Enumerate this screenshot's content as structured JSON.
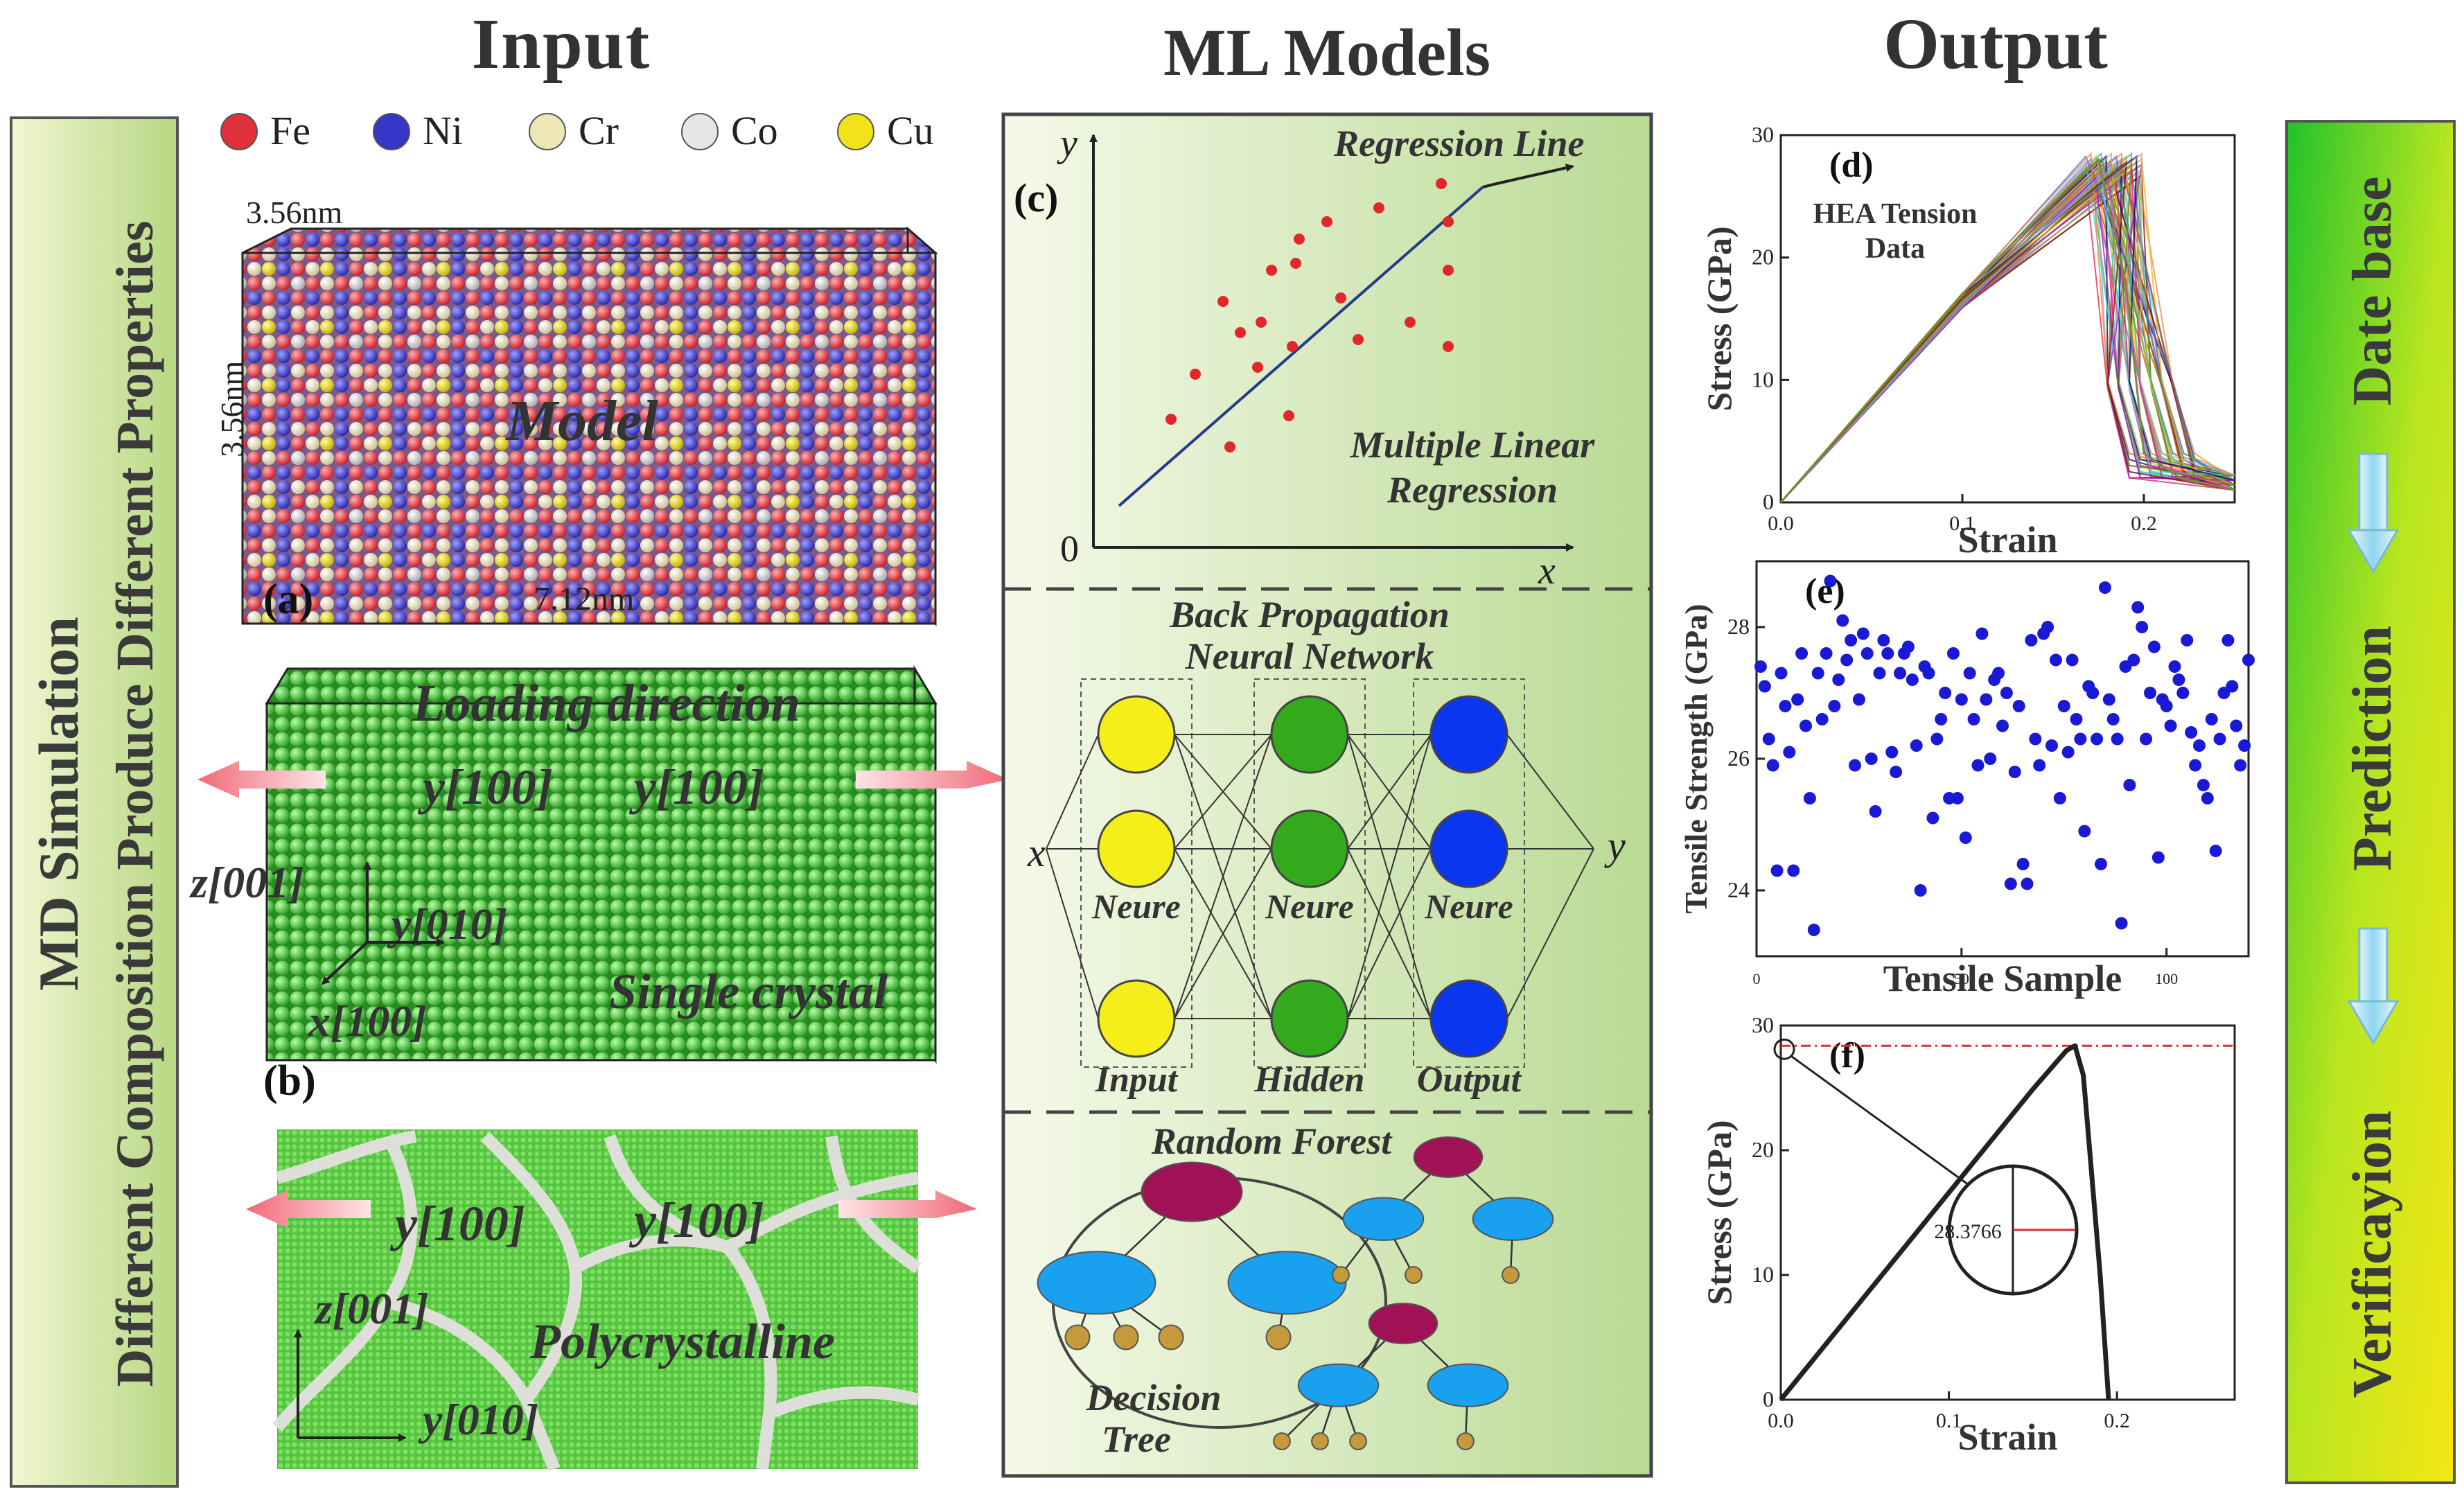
{
  "headings": {
    "input": "Input",
    "ml": "ML Models",
    "output": "Output"
  },
  "left_banner": {
    "line1": "MD Simulation",
    "line2": "Different Composition Produce Different Properties"
  },
  "right_banner": {
    "database": "Date base",
    "prediction": "Prediction",
    "verification": "Verificayion"
  },
  "legend": {
    "items": [
      {
        "label": "Fe",
        "color": "#e0303a"
      },
      {
        "label": "Ni",
        "color": "#3636c8"
      },
      {
        "label": "Cr",
        "color": "#efe6b8"
      },
      {
        "label": "Co",
        "color": "#e6e6e6"
      },
      {
        "label": "Cu",
        "color": "#f2e21a"
      }
    ]
  },
  "panel_a": {
    "tag": "(a)",
    "model": "Model",
    "depth": "3.56nm",
    "height": "3.56nm",
    "length": "7.12nm"
  },
  "panel_b": {
    "tag": "(b)",
    "loading": "Loading direction",
    "y1": "y[100]",
    "y2": "y[100]",
    "z": "z[001]",
    "yy": "y[010]",
    "x": "x[100]",
    "crystal": "Single crystal"
  },
  "panel_poly": {
    "y1": "y[100]",
    "y2": "y[100]",
    "z": "z[001]",
    "yy": "y[010]",
    "label": "Polycrystalline"
  },
  "panel_c": {
    "tag": "(c)",
    "yaxis": "y",
    "xaxis": "x",
    "origin": "0",
    "regression": "Regression Line",
    "mlr1": "Multiple Linear",
    "mlr2": "Regression"
  },
  "bpnn": {
    "title1": "Back Propagation",
    "title2": "Neural Network",
    "x": "x",
    "y": "y",
    "neure": [
      "Neure",
      "Neure",
      "Neure"
    ],
    "layers": [
      "Input",
      "Hidden",
      "Output"
    ],
    "colors": [
      "#f5ee1a",
      "#33a91c",
      "#0a36f0"
    ]
  },
  "rf": {
    "title": "Random Forest",
    "tree1": "Decision",
    "tree2": "Tree"
  },
  "chart_data": [
    {
      "id": "d",
      "tag": "(d)",
      "type": "line",
      "title": "HEA Tension",
      "subtitle": "Data",
      "xlabel": "Strain",
      "ylabel": "Stress (GPa)",
      "xlim": [
        0,
        0.25
      ],
      "ylim": [
        0,
        30
      ],
      "xticks": [
        "0.0",
        "0.1",
        "0.2"
      ],
      "yticks": [
        "0",
        "10",
        "20",
        "30"
      ],
      "series": [
        {
          "x": [
            0,
            0.05,
            0.1,
            0.15,
            0.175,
            0.19,
            0.2,
            0.22,
            0.25
          ],
          "y": [
            0,
            8.5,
            17,
            24.5,
            28,
            18,
            4,
            2,
            1
          ]
        }
      ]
    },
    {
      "id": "e",
      "tag": "(e)",
      "type": "scatter",
      "xlabel": "Tensile Sample",
      "ylabel": "Tensile Strength (GPa)",
      "xlim": [
        0,
        120
      ],
      "ylim": [
        23,
        29
      ],
      "xticks": [
        "0",
        "50",
        "100"
      ],
      "yticks": [
        "24",
        "26",
        "28"
      ],
      "x": [
        1,
        2,
        3,
        4,
        5,
        6,
        7,
        8,
        9,
        10,
        11,
        12,
        13,
        14,
        15,
        16,
        17,
        18,
        19,
        20,
        21,
        22,
        23,
        24,
        25,
        26,
        27,
        28,
        29,
        30,
        31,
        32,
        33,
        34,
        35,
        36,
        37,
        38,
        39,
        40,
        41,
        42,
        43,
        44,
        45,
        46,
        47,
        48,
        49,
        50,
        51,
        52,
        53,
        54,
        55,
        56,
        57,
        58,
        59,
        60,
        61,
        62,
        63,
        64,
        65,
        66,
        67,
        68,
        69,
        70,
        71,
        72,
        73,
        74,
        75,
        76,
        77,
        78,
        79,
        80,
        81,
        82,
        83,
        84,
        85,
        86,
        87,
        88,
        89,
        90,
        91,
        92,
        93,
        94,
        95,
        96,
        97,
        98,
        99,
        100,
        101,
        102,
        103,
        104,
        105,
        106,
        107,
        108,
        109,
        110,
        111,
        112,
        113,
        114,
        115,
        116,
        117,
        118,
        119,
        120
      ],
      "y": [
        27.4,
        27.1,
        26.3,
        25.9,
        24.3,
        27.3,
        26.8,
        26.1,
        24.3,
        26.9,
        27.6,
        26.5,
        25.4,
        23.4,
        27.3,
        26.6,
        27.6,
        28.7,
        26.8,
        27.2,
        28.1,
        27.5,
        27.8,
        25.9,
        26.9,
        27.9,
        27.6,
        26.0,
        25.2,
        27.3,
        27.8,
        27.6,
        26.1,
        25.8,
        27.3,
        27.6,
        27.7,
        27.2,
        26.2,
        24.0,
        27.4,
        27.3,
        25.1,
        26.3,
        26.6,
        27.0,
        25.4,
        27.6,
        25.4,
        26.9,
        24.8,
        27.3,
        26.6,
        25.9,
        27.9,
        26.9,
        26.0,
        27.2,
        27.3,
        26.5,
        27.0,
        24.1,
        25.8,
        26.8,
        24.4,
        24.1,
        27.8,
        26.3,
        25.9,
        27.9,
        28.0,
        26.2,
        27.5,
        25.4,
        26.8,
        26.1,
        27.5,
        26.6,
        26.3,
        24.9,
        27.1,
        27.0,
        26.3,
        24.4,
        28.6,
        26.9,
        26.6,
        26.3,
        23.5,
        27.4,
        25.6,
        27.5,
        28.3,
        28.0,
        26.3,
        27.0,
        27.7,
        24.5,
        26.9,
        26.8,
        26.5,
        27.4,
        27.2,
        27.0,
        27.8,
        26.4,
        25.9,
        26.2,
        25.6,
        25.4,
        26.6,
        24.6,
        26.3,
        27.0,
        27.8,
        27.1,
        26.5,
        25.9,
        26.2,
        27.5
      ]
    },
    {
      "id": "f",
      "tag": "(f)",
      "type": "line",
      "xlabel": "Strain",
      "ylabel": "Stress (GPa)",
      "xlim": [
        0,
        0.27
      ],
      "ylim": [
        0,
        30
      ],
      "xticks": [
        "0.0",
        "0.1",
        "0.2"
      ],
      "yticks": [
        "0",
        "10",
        "20",
        "30"
      ],
      "annotation": "28.3766",
      "peak": 28.3766,
      "series": [
        {
          "x": [
            0,
            0.05,
            0.1,
            0.15,
            0.17,
            0.175,
            0.18,
            0.19,
            0.195
          ],
          "y": [
            0,
            8.3,
            16.6,
            24.9,
            28.0,
            28.3766,
            26,
            10,
            0
          ]
        }
      ]
    }
  ]
}
